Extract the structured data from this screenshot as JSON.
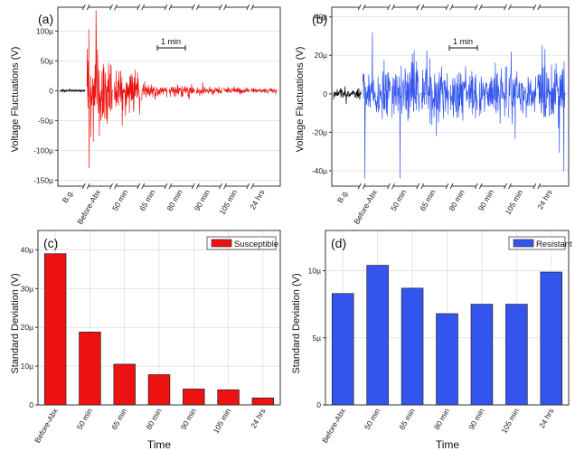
{
  "colors": {
    "susceptible": "#ee1111",
    "resistant": "#3355ee",
    "background_signal": "#000000",
    "grid": "#d8d8d8",
    "frame": "#333333"
  },
  "segment_labels": [
    "B.g.",
    "Before-Abx",
    "50 min",
    "65 min",
    "80 min",
    "90 min",
    "105 min",
    "24 hrs"
  ],
  "chart_data": [
    {
      "panel": "(a)",
      "type": "line",
      "ylabel": "Voltage Fluctuations (V)",
      "ylim": [
        -160,
        140
      ],
      "yunit": "µ",
      "yticks": [
        "-150µ",
        "-100µ",
        "-50µ",
        "0",
        "50µ",
        "100µ"
      ],
      "ytick_values": [
        -150,
        -100,
        -50,
        0,
        50,
        100
      ],
      "categories": [
        "B.g.",
        "Before-Abx",
        "50 min",
        "65 min",
        "80 min",
        "90 min",
        "105 min",
        "24 hrs"
      ],
      "series_amplitudes": [
        3,
        80,
        45,
        14,
        12,
        8,
        6,
        5
      ],
      "peaks": {
        "max": 135,
        "min": -130
      },
      "scale_bar": "1 min",
      "color_key": "susceptible"
    },
    {
      "panel": "(b)",
      "type": "line",
      "ylabel": "Voltage Fluctuations (V)",
      "ylim": [
        -48,
        45
      ],
      "yunit": "µ",
      "yticks": [
        "-40µ",
        "-20µ",
        "0",
        "20µ",
        "40µ"
      ],
      "ytick_values": [
        -40,
        -20,
        0,
        20,
        40
      ],
      "categories": [
        "B.g.",
        "Before-Abx",
        "50 min",
        "65 min",
        "80 min",
        "90 min",
        "105 min",
        "24 hrs"
      ],
      "series_amplitudes": [
        3,
        17,
        20,
        19,
        16,
        17,
        16,
        19
      ],
      "peaks": {
        "max": 32,
        "min": -44
      },
      "scale_bar": "1 min",
      "color_key": "resistant"
    },
    {
      "panel": "(c)",
      "type": "bar",
      "title": "",
      "xlabel": "Time",
      "ylabel": "Standard Deviation (V)",
      "legend": "Susceptible",
      "ylim": [
        0,
        45
      ],
      "yticks": [
        "0",
        "10µ",
        "20µ",
        "30µ",
        "40µ"
      ],
      "ytick_values": [
        0,
        10,
        20,
        30,
        40
      ],
      "categories": [
        "Before-Abx",
        "50 min",
        "65 min",
        "80 min",
        "90 min",
        "105 min",
        "24 hrs"
      ],
      "values": [
        39,
        18.8,
        10.5,
        7.8,
        4.1,
        3.9,
        1.8
      ],
      "color_key": "susceptible"
    },
    {
      "panel": "(d)",
      "type": "bar",
      "title": "",
      "xlabel": "Time",
      "ylabel": "Standard Deviation (V)",
      "legend": "Resistant",
      "ylim": [
        0,
        13
      ],
      "yticks": [
        "0",
        "5µ",
        "10µ"
      ],
      "ytick_values": [
        0,
        5,
        10
      ],
      "categories": [
        "Before-Abx",
        "50 min",
        "65 min",
        "80 min",
        "90 min",
        "105 min",
        "24 hrs"
      ],
      "values": [
        8.3,
        10.4,
        8.7,
        6.8,
        7.5,
        7.5,
        9.9
      ],
      "color_key": "resistant"
    }
  ]
}
